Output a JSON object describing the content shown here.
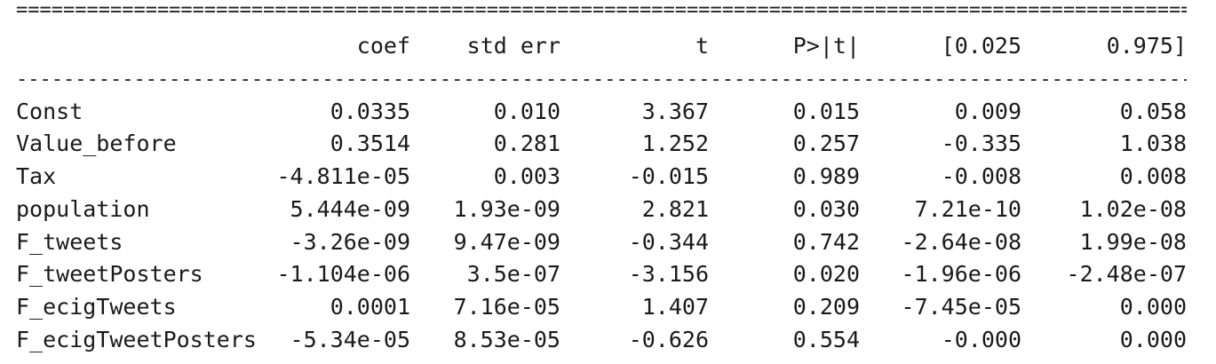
{
  "rules": {
    "top": "==========================================================================================================",
    "mid": "----------------------------------------------------------------------------------------------------------"
  },
  "header": {
    "coef": "coef",
    "std_err": "std err",
    "t": "t",
    "p": "P>|t|",
    "ci_low": "[0.025",
    "ci_high": "0.975]"
  },
  "rows": [
    {
      "name": "Const",
      "coef": "0.0335",
      "std_err": "0.010",
      "t": "3.367",
      "p": "0.015",
      "ci_low": "0.009",
      "ci_high": "0.058"
    },
    {
      "name": "Value_before",
      "coef": "0.3514",
      "std_err": "0.281",
      "t": "1.252",
      "p": "0.257",
      "ci_low": "-0.335",
      "ci_high": "1.038"
    },
    {
      "name": "Tax",
      "coef": "-4.811e-05",
      "std_err": "0.003",
      "t": "-0.015",
      "p": "0.989",
      "ci_low": "-0.008",
      "ci_high": "0.008"
    },
    {
      "name": "population",
      "coef": "5.444e-09",
      "std_err": "1.93e-09",
      "t": "2.821",
      "p": "0.030",
      "ci_low": "7.21e-10",
      "ci_high": "1.02e-08"
    },
    {
      "name": "F_tweets",
      "coef": "-3.26e-09",
      "std_err": "9.47e-09",
      "t": "-0.344",
      "p": "0.742",
      "ci_low": "-2.64e-08",
      "ci_high": "1.99e-08"
    },
    {
      "name": "F_tweetPosters",
      "coef": "-1.104e-06",
      "std_err": "3.5e-07",
      "t": "-3.156",
      "p": "0.020",
      "ci_low": "-1.96e-06",
      "ci_high": "-2.48e-07"
    },
    {
      "name": "F_ecigTweets",
      "coef": "0.0001",
      "std_err": "7.16e-05",
      "t": "1.407",
      "p": "0.209",
      "ci_low": "-7.45e-05",
      "ci_high": "0.000"
    },
    {
      "name": "F_ecigTweetPosters",
      "coef": "-5.34e-05",
      "std_err": "8.53e-05",
      "t": "-0.626",
      "p": "0.554",
      "ci_low": "-0.000",
      "ci_high": "0.000"
    }
  ]
}
